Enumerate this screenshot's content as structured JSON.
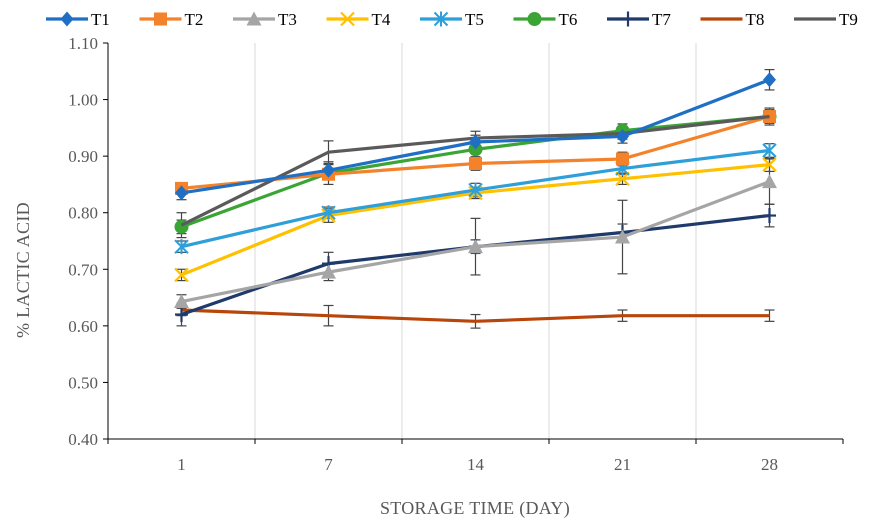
{
  "chart_data": {
    "type": "line",
    "title": "",
    "xlabel": "STORAGE TIME (DAY)",
    "ylabel": "% LACTIC ACID",
    "categories": [
      "1",
      "7",
      "14",
      "21",
      "28"
    ],
    "ylim": [
      0.4,
      1.1
    ],
    "yticks": [
      "0.40",
      "0.50",
      "0.60",
      "0.70",
      "0.80",
      "0.90",
      "1.00",
      "1.10"
    ],
    "grid": "vertical",
    "legend": "top",
    "error_bars": true,
    "series": [
      {
        "name": "T1",
        "color": "#1f6fc5",
        "marker": "diamond",
        "values": [
          0.835,
          0.875,
          0.925,
          0.935,
          1.035
        ],
        "errors": [
          0.012,
          0.01,
          0.012,
          0.012,
          0.018
        ]
      },
      {
        "name": "T2",
        "color": "#f4822a",
        "marker": "square",
        "values": [
          0.843,
          0.868,
          0.887,
          0.895,
          0.97
        ],
        "errors": [
          0.01,
          0.01,
          0.012,
          0.012,
          0.015
        ]
      },
      {
        "name": "T3",
        "color": "#a5a5a5",
        "marker": "triangle",
        "values": [
          0.643,
          0.695,
          0.74,
          0.757,
          0.855
        ],
        "errors": [
          0.012,
          0.015,
          0.05,
          0.065,
          0.04
        ]
      },
      {
        "name": "T4",
        "color": "#ffc000",
        "marker": "x",
        "values": [
          0.69,
          0.795,
          0.835,
          0.86,
          0.885
        ],
        "errors": [
          0.01,
          0.012,
          0.01,
          0.01,
          0.012
        ]
      },
      {
        "name": "T5",
        "color": "#2e9fd9",
        "marker": "star",
        "values": [
          0.74,
          0.8,
          0.84,
          0.878,
          0.91
        ],
        "errors": [
          0.01,
          0.01,
          0.012,
          0.01,
          0.012
        ]
      },
      {
        "name": "T6",
        "color": "#3aa535",
        "marker": "circle",
        "values": [
          0.775,
          0.87,
          0.912,
          0.945,
          0.97
        ],
        "errors": [
          0.012,
          0.02,
          0.015,
          0.012,
          0.012
        ]
      },
      {
        "name": "T7",
        "color": "#1f3a6b",
        "marker": "plus",
        "values": [
          0.62,
          0.71,
          0.74,
          0.765,
          0.795
        ],
        "errors": [
          0.02,
          0.02,
          0.012,
          0.015,
          0.02
        ]
      },
      {
        "name": "T8",
        "color": "#b8460b",
        "marker": "none",
        "values": [
          0.628,
          0.618,
          0.608,
          0.618,
          0.618
        ],
        "errors": [
          0.01,
          0.018,
          0.012,
          0.01,
          0.01
        ]
      },
      {
        "name": "T9",
        "color": "#5a5a5a",
        "marker": "none",
        "values": [
          0.778,
          0.907,
          0.932,
          0.94,
          0.97
        ],
        "errors": [
          0.022,
          0.02,
          0.012,
          0.01,
          0.012
        ]
      }
    ]
  }
}
